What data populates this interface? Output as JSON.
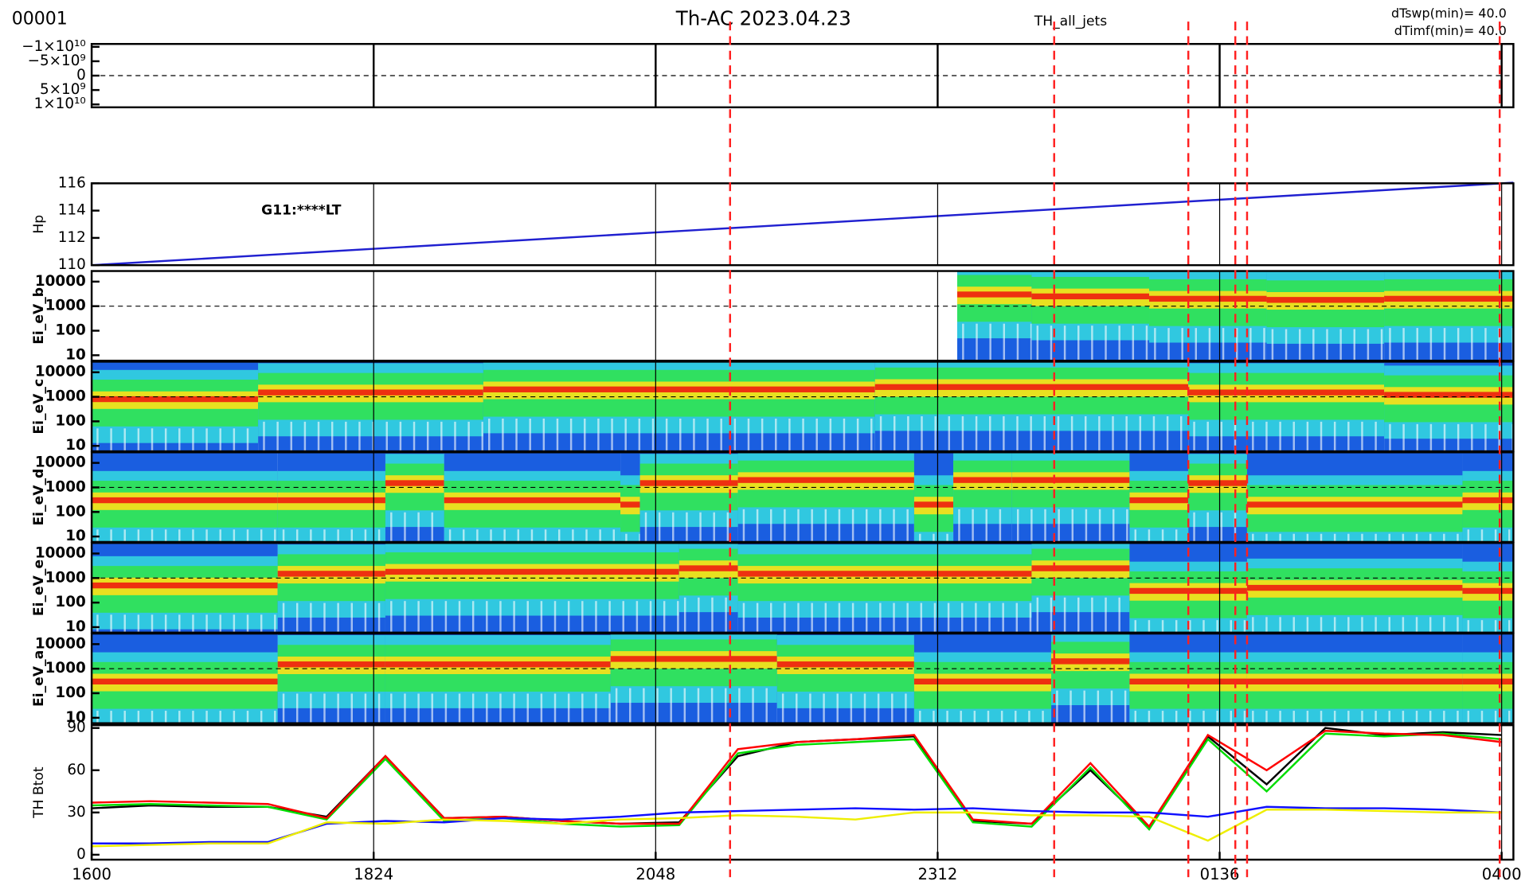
{
  "header": {
    "run": "00001",
    "title": "Th-AC 2023.04.23",
    "subtitle": "TH_all_jets",
    "sweep": "dTswp(min)=   40.0",
    "imf": "dTimf(min)=   40.0"
  },
  "jet_markers": {
    "x": [
      326,
      491.5,
      560,
      584,
      590,
      719
    ],
    "color": "#ff2020"
  },
  "chart_data": [
    {
      "type": "line",
      "xlim": [
        0,
        726
      ],
      "ylim": [
        11000000000,
        -11000000000
      ],
      "ref_line": 0,
      "series": [],
      "yticks": [
        {
          "value": -10000000000,
          "label": "−1×10¹⁰"
        },
        {
          "value": -5000000000,
          "label": "−5×10⁹"
        },
        0,
        {
          "value": 5000000000,
          "label": "5×10⁹"
        },
        {
          "value": 10000000000,
          "label": "1×10¹⁰"
        }
      ]
    },
    {
      "type": "line",
      "xlim": [
        0,
        726
      ],
      "ylabel": "Hp",
      "annotation": "G11:****LT",
      "ylim": [
        110,
        116
      ],
      "yticks": [
        110,
        112,
        114,
        116
      ],
      "x": [
        0,
        726
      ],
      "series": [
        {
          "color": "#2020d0",
          "values": [
            110,
            116.05
          ]
        }
      ]
    },
    {
      "type": "spectrogram",
      "xlim": [
        0,
        726
      ],
      "ylabel": "Ei_eV_b",
      "log_y": true,
      "ylim": [
        6,
        27000
      ],
      "yticks": [
        10,
        100,
        1000,
        10000
      ],
      "ref_line": 1000,
      "x": [
        442,
        480,
        540,
        600,
        660
      ],
      "values": [
        3000,
        2500,
        2000,
        1800,
        2000
      ]
    },
    {
      "type": "spectrogram",
      "xlim": [
        0,
        726
      ],
      "ylabel": "Ei_eV_c",
      "log_y": true,
      "ylim": [
        6,
        27000
      ],
      "yticks": [
        10,
        100,
        1000,
        10000
      ],
      "ref_line": 1000,
      "x": [
        0,
        85,
        200,
        400,
        560,
        590,
        660
      ],
      "values": [
        800,
        1500,
        2000,
        2500,
        1500,
        1500,
        1200
      ]
    },
    {
      "type": "spectrogram",
      "xlim": [
        0,
        726
      ],
      "ylabel": "Ei_eV_d",
      "log_y": true,
      "ylim": [
        6,
        27000
      ],
      "yticks": [
        10,
        100,
        1000,
        10000
      ],
      "ref_line": 1000,
      "x": [
        0,
        95,
        150,
        180,
        270,
        280,
        330,
        420,
        440,
        470,
        530,
        560,
        590,
        700
      ],
      "values": [
        300,
        300,
        1500,
        300,
        200,
        1500,
        2000,
        200,
        2000,
        2000,
        300,
        1500,
        200,
        300
      ]
    },
    {
      "type": "spectrogram",
      "xlim": [
        0,
        726
      ],
      "ylabel": "Ei_eV_e",
      "log_y": true,
      "ylim": [
        6,
        27000
      ],
      "yticks": [
        10,
        100,
        1000,
        10000
      ],
      "ref_line": 1000,
      "x": [
        0,
        95,
        150,
        300,
        330,
        480,
        530,
        590,
        700
      ],
      "values": [
        500,
        1500,
        1800,
        2500,
        1500,
        2500,
        300,
        400,
        300
      ]
    },
    {
      "type": "spectrogram",
      "xlim": [
        0,
        726
      ],
      "ylabel": "Ei_eV_a",
      "log_y": true,
      "ylim": [
        6,
        27000
      ],
      "yticks": [
        10,
        100,
        1000,
        10000
      ],
      "ref_line": 1000,
      "x": [
        0,
        95,
        150,
        265,
        350,
        420,
        490,
        530,
        590,
        700
      ],
      "values": [
        300,
        1500,
        1500,
        2500,
        1500,
        300,
        2000,
        300,
        300,
        300
      ]
    },
    {
      "type": "line",
      "xlim": [
        0,
        726
      ],
      "ylabel": "TH Btot",
      "ylim": [
        -3.5,
        92
      ],
      "yticks": [
        0,
        30,
        60,
        90
      ],
      "xticks": [
        {
          "value": 0,
          "label": "1600"
        },
        {
          "value": 144,
          "label": "1824"
        },
        {
          "value": 288,
          "label": "2048"
        },
        {
          "value": 432,
          "label": "2312"
        },
        {
          "value": 576,
          "label": "0136"
        },
        {
          "value": 720,
          "label": "0400"
        }
      ],
      "x": [
        0,
        30,
        60,
        90,
        120,
        150,
        180,
        210,
        240,
        270,
        300,
        330,
        360,
        390,
        420,
        450,
        480,
        510,
        540,
        570,
        600,
        630,
        660,
        690,
        720
      ],
      "series": [
        {
          "color": "#000000",
          "values": [
            33,
            35,
            34,
            34,
            27,
            70,
            26,
            27,
            24,
            22,
            23,
            70,
            80,
            82,
            84,
            24,
            22,
            60,
            20,
            84,
            50,
            90,
            85,
            87,
            85
          ]
        },
        {
          "color": "#00dd00",
          "values": [
            35,
            36,
            35,
            34,
            25,
            68,
            24,
            26,
            22,
            20,
            21,
            72,
            78,
            80,
            82,
            23,
            20,
            62,
            18,
            82,
            45,
            86,
            84,
            86,
            82
          ]
        },
        {
          "color": "#ff0000",
          "values": [
            37,
            38,
            37,
            36,
            26,
            70,
            26,
            27,
            24,
            22,
            22,
            75,
            80,
            82,
            85,
            25,
            22,
            65,
            20,
            85,
            60,
            88,
            86,
            85,
            80
          ]
        },
        {
          "color": "#1010ff",
          "values": [
            8,
            8,
            9,
            9,
            22,
            24,
            23,
            26,
            25,
            27,
            30,
            31,
            32,
            33,
            32,
            33,
            31,
            30,
            30,
            27,
            34,
            33,
            33,
            32,
            30
          ]
        },
        {
          "color": "#eeee00",
          "values": [
            6,
            7,
            8,
            8,
            23,
            22,
            25,
            24,
            22,
            25,
            26,
            28,
            27,
            25,
            30,
            30,
            28,
            28,
            27,
            10,
            32,
            32,
            31,
            30,
            30
          ]
        }
      ]
    }
  ]
}
